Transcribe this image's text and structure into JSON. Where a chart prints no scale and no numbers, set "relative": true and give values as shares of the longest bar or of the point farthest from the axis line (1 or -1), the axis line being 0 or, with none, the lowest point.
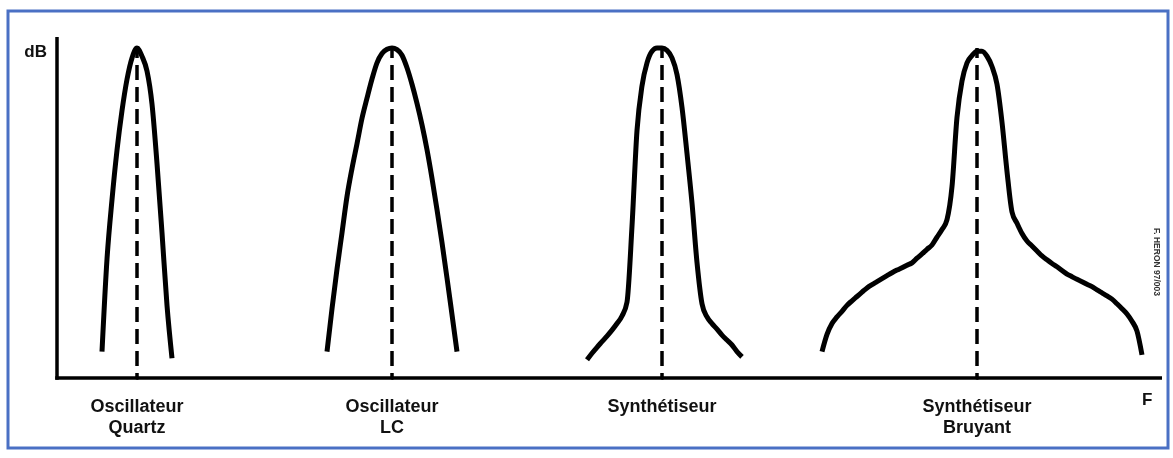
{
  "chart_data": {
    "type": "line",
    "relative": true,
    "xlabel": "F",
    "ylabel": "dB",
    "annotations": [
      "F. HERON 97/003"
    ],
    "categories": [
      null,
      null,
      null,
      null,
      null,
      null,
      null,
      null,
      null,
      null,
      null,
      null,
      null,
      null,
      null,
      null,
      "Oscillateur Quartz",
      null,
      null,
      null,
      null,
      null,
      null,
      null,
      null,
      null,
      null,
      null,
      null,
      null,
      null,
      null,
      null,
      null,
      null,
      null,
      null,
      null,
      null,
      null,
      null,
      null,
      null,
      null,
      null,
      null,
      null,
      null,
      null,
      null,
      null,
      null,
      null,
      null,
      null,
      null,
      null,
      null,
      null,
      null,
      null,
      null,
      null,
      null,
      null,
      null,
      null,
      "Oscillateur LC",
      null,
      null,
      null,
      null,
      null,
      null,
      null,
      null,
      null,
      null,
      null,
      null,
      null,
      null,
      null,
      null,
      null,
      null,
      null,
      null,
      null,
      null,
      null,
      null,
      null,
      null,
      null,
      null,
      null,
      null,
      null,
      null,
      null,
      null,
      null,
      null,
      null,
      null,
      null,
      null,
      null,
      null,
      null,
      null,
      null,
      null,
      null,
      null,
      null,
      null,
      null,
      null,
      null,
      "Synthétiseur",
      null,
      null,
      null,
      null,
      null,
      null,
      null,
      null,
      null,
      null,
      null,
      null,
      null,
      null,
      null,
      null,
      null,
      null,
      null,
      null,
      null,
      null,
      null,
      null,
      null,
      null,
      null,
      null,
      null,
      null,
      null,
      null,
      null,
      null,
      null,
      null,
      null,
      null,
      null,
      null,
      null,
      null,
      null,
      null,
      null,
      null,
      null,
      null,
      null,
      null,
      null,
      null,
      null,
      null,
      null,
      null,
      null,
      null,
      null,
      null,
      null,
      null,
      "Synthétiseur Bruyant",
      null,
      null,
      null,
      null,
      null,
      null,
      null,
      null,
      null,
      null,
      null,
      null,
      null,
      null,
      null,
      null,
      null,
      null,
      null,
      null,
      null,
      null,
      null,
      null,
      null,
      null,
      null,
      null,
      null,
      null,
      null,
      null,
      null,
      null,
      null,
      null,
      null
    ],
    "series": [
      {
        "color": "#000000",
        "values": [
          null,
          null,
          null,
          null,
          null,
          null,
          null,
          null,
          null,
          0.08,
          0.36,
          0.54,
          0.69,
          0.81,
          0.905,
          0.97,
          1,
          0.975,
          0.93,
          0.83,
          0.65,
          0.44,
          0.22,
          0.06,
          null,
          null,
          null,
          null,
          null,
          null,
          null,
          null,
          null,
          null,
          null,
          null,
          null,
          null,
          null,
          null,
          null,
          null,
          null,
          null,
          null,
          null,
          null,
          null,
          null,
          null,
          null,
          null,
          null,
          null,
          null,
          null,
          null,
          null,
          null,
          null,
          null,
          null,
          null,
          null,
          null,
          null,
          null,
          null,
          null,
          null,
          null,
          null,
          null,
          null,
          null,
          null,
          null,
          null,
          null,
          null,
          null,
          null,
          null,
          null,
          null,
          null,
          null,
          null,
          null,
          null,
          null,
          null,
          null,
          null,
          null,
          null,
          null,
          null,
          null,
          null,
          null,
          null,
          null,
          null,
          null,
          null,
          null,
          null,
          null,
          null,
          null,
          null,
          null,
          null,
          null,
          null,
          null,
          null,
          null,
          null,
          null,
          null,
          null,
          null,
          null,
          null,
          null,
          null,
          null,
          null,
          null,
          null,
          null,
          null,
          null,
          null,
          null,
          null,
          null,
          null,
          null,
          null,
          null,
          null,
          null,
          null,
          null,
          null,
          null,
          null,
          null,
          null,
          null,
          null,
          null,
          null,
          null,
          null,
          null,
          null,
          null,
          null,
          null,
          null,
          null,
          null,
          null,
          null,
          null,
          null,
          null,
          null,
          null,
          null,
          null,
          null,
          null,
          null,
          null,
          null,
          null,
          null,
          null,
          null,
          null,
          null,
          null,
          null,
          null,
          null,
          null,
          null,
          null,
          null,
          null,
          null,
          null,
          null,
          null,
          null,
          null,
          null,
          null,
          null,
          null,
          null,
          null,
          null,
          null,
          null,
          null,
          null,
          null,
          null,
          null,
          null,
          null,
          null,
          null,
          null,
          null,
          null
        ]
      },
      {
        "color": "#000000",
        "values": [
          null,
          null,
          null,
          null,
          null,
          null,
          null,
          null,
          null,
          null,
          null,
          null,
          null,
          null,
          null,
          null,
          null,
          null,
          null,
          null,
          null,
          null,
          null,
          null,
          null,
          null,
          null,
          null,
          null,
          null,
          null,
          null,
          null,
          null,
          null,
          null,
          null,
          null,
          null,
          null,
          null,
          null,
          null,
          null,
          null,
          null,
          null,
          null,
          null,
          null,
          null,
          null,
          null,
          null,
          0.08,
          0.21,
          0.33,
          0.44,
          0.55,
          0.635,
          0.71,
          0.787,
          0.848,
          0.906,
          0.955,
          0.983,
          0.996,
          1,
          0.995,
          0.978,
          0.94,
          0.89,
          0.832,
          0.767,
          0.692,
          0.605,
          0.51,
          0.41,
          0.303,
          0.192,
          0.08,
          null,
          null,
          null,
          null,
          null,
          null,
          null,
          null,
          null,
          null,
          null,
          null,
          null,
          null,
          null,
          null,
          null,
          null,
          null,
          null,
          null,
          null,
          null,
          null,
          null,
          null,
          null,
          null,
          null,
          null,
          null,
          null,
          null,
          null,
          null,
          null,
          null,
          null,
          null,
          null,
          null,
          null,
          null,
          null,
          null,
          null,
          null,
          null,
          null,
          null,
          null,
          null,
          null,
          null,
          null,
          null,
          null,
          null,
          null,
          null,
          null,
          null,
          null,
          null,
          null,
          null,
          null,
          null,
          null,
          null,
          null,
          null,
          null,
          null,
          null,
          null,
          null,
          null,
          null,
          null,
          null,
          null,
          null,
          null,
          null,
          null,
          null,
          null,
          null,
          null,
          null,
          null,
          null,
          null,
          null,
          null,
          null,
          null,
          null,
          null,
          null,
          null,
          null,
          null,
          null,
          null,
          null,
          null,
          null,
          null,
          null,
          null,
          null,
          null,
          null,
          null,
          null,
          null,
          null,
          null,
          null,
          null,
          null,
          null,
          null,
          null,
          null,
          null,
          null,
          null,
          null,
          null,
          null,
          null,
          null,
          null,
          null,
          null,
          null,
          null,
          null
        ]
      },
      {
        "color": "#000000",
        "values": [
          null,
          null,
          null,
          null,
          null,
          null,
          null,
          null,
          null,
          null,
          null,
          null,
          null,
          null,
          null,
          null,
          null,
          null,
          null,
          null,
          null,
          null,
          null,
          null,
          null,
          null,
          null,
          null,
          null,
          null,
          null,
          null,
          null,
          null,
          null,
          null,
          null,
          null,
          null,
          null,
          null,
          null,
          null,
          null,
          null,
          null,
          null,
          null,
          null,
          null,
          null,
          null,
          null,
          null,
          null,
          null,
          null,
          null,
          null,
          null,
          null,
          null,
          null,
          null,
          null,
          null,
          null,
          null,
          null,
          null,
          null,
          null,
          null,
          null,
          null,
          null,
          null,
          null,
          null,
          null,
          null,
          null,
          null,
          null,
          null,
          null,
          null,
          null,
          null,
          null,
          null,
          null,
          null,
          null,
          null,
          null,
          null,
          null,
          null,
          null,
          null,
          null,
          null,
          null,
          null,
          null,
          0.055,
          0.075,
          0.093,
          0.11,
          0.127,
          0.145,
          0.165,
          0.188,
          0.23,
          0.46,
          0.75,
          0.885,
          0.955,
          0.99,
          1,
          1,
          0.993,
          0.97,
          0.92,
          0.82,
          0.68,
          0.53,
          0.35,
          0.225,
          0.185,
          0.165,
          0.148,
          0.13,
          0.115,
          0.1,
          0.08,
          0.064,
          null,
          null,
          null,
          null,
          null,
          null,
          null,
          null,
          null,
          null,
          null,
          null,
          null,
          null,
          null,
          null,
          null,
          null,
          null,
          null,
          null,
          null,
          null,
          null,
          null,
          null,
          null,
          null,
          null,
          null,
          null,
          null,
          null,
          null,
          null,
          null,
          null,
          null,
          null,
          null,
          null,
          null,
          null,
          null,
          null,
          null,
          null,
          null,
          null,
          null,
          null,
          null,
          null,
          null,
          null,
          null,
          null,
          null,
          null,
          null,
          null,
          null,
          null,
          null,
          null,
          null,
          null,
          null,
          null,
          null,
          null,
          null,
          null,
          null,
          null,
          null,
          null,
          null,
          null,
          null,
          null,
          null,
          null,
          null
        ]
      },
      {
        "color": "#000000",
        "values": [
          null,
          null,
          null,
          null,
          null,
          null,
          null,
          null,
          null,
          null,
          null,
          null,
          null,
          null,
          null,
          null,
          null,
          null,
          null,
          null,
          null,
          null,
          null,
          null,
          null,
          null,
          null,
          null,
          null,
          null,
          null,
          null,
          null,
          null,
          null,
          null,
          null,
          null,
          null,
          null,
          null,
          null,
          null,
          null,
          null,
          null,
          null,
          null,
          null,
          null,
          null,
          null,
          null,
          null,
          null,
          null,
          null,
          null,
          null,
          null,
          null,
          null,
          null,
          null,
          null,
          null,
          null,
          null,
          null,
          null,
          null,
          null,
          null,
          null,
          null,
          null,
          null,
          null,
          null,
          null,
          null,
          null,
          null,
          null,
          null,
          null,
          null,
          null,
          null,
          null,
          null,
          null,
          null,
          null,
          null,
          null,
          null,
          null,
          null,
          null,
          null,
          null,
          null,
          null,
          null,
          null,
          null,
          null,
          null,
          null,
          null,
          null,
          null,
          null,
          null,
          null,
          null,
          null,
          null,
          null,
          null,
          null,
          null,
          null,
          null,
          null,
          null,
          null,
          null,
          null,
          null,
          null,
          null,
          null,
          null,
          null,
          null,
          null,
          null,
          null,
          null,
          null,
          null,
          null,
          null,
          null,
          null,
          null,
          null,
          null,
          null,
          null,
          null,
          0.08,
          0.132,
          0.165,
          0.185,
          0.202,
          0.22,
          0.234,
          0.247,
          0.26,
          0.273,
          0.283,
          0.292,
          0.301,
          0.31,
          0.319,
          0.327,
          0.334,
          0.342,
          0.349,
          0.363,
          0.376,
          0.39,
          0.403,
          0.427,
          0.45,
          0.48,
          0.58,
          0.79,
          0.9,
          0.955,
          0.977,
          0.99,
          0.99,
          0.975,
          0.944,
          0.89,
          0.775,
          0.626,
          0.503,
          0.469,
          0.438,
          0.415,
          0.4,
          0.385,
          0.37,
          0.358,
          0.347,
          0.337,
          0.326,
          0.315,
          0.307,
          0.299,
          0.292,
          0.284,
          0.277,
          0.267,
          0.258,
          0.249,
          0.239,
          0.225,
          0.21,
          0.194,
          0.172,
          0.142,
          0.07,
          null,
          null,
          null,
          null
        ]
      }
    ],
    "ref_lines": [
      {
        "axis": "x",
        "value": "Oscillateur Quartz",
        "color": "#000000",
        "line_style": "dashed"
      },
      {
        "axis": "x",
        "value": "Oscillateur LC",
        "color": "#000000",
        "line_style": "dashed"
      },
      {
        "axis": "x",
        "value": "Synthétiseur",
        "color": "#000000",
        "line_style": "dashed"
      },
      {
        "axis": "x",
        "value": "Synthétiseur Bruyant",
        "color": "#000000",
        "line_style": "dashed"
      }
    ]
  }
}
